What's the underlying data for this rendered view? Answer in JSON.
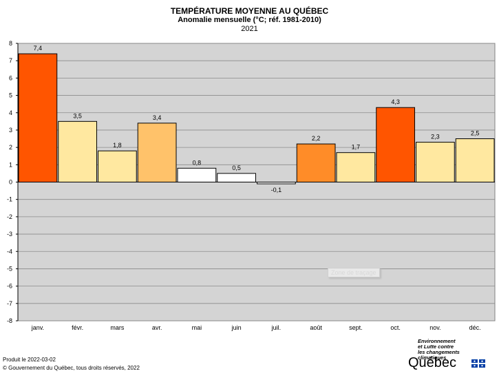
{
  "header": {
    "title": "TEMPÉRATURE MOYENNE AU QUÉBEC",
    "subtitle": "Anomalie mensuelle (°C; réf. 1981-2010)",
    "year": "2021"
  },
  "chart_data": {
    "type": "bar",
    "title": "TEMPÉRATURE MOYENNE AU QUÉBEC",
    "subtitle": "Anomalie mensuelle (°C; réf. 1981-2010)",
    "categories": [
      "janv.",
      "févr.",
      "mars",
      "avr.",
      "mai",
      "juin",
      "juil.",
      "août",
      "sept.",
      "oct.",
      "nov.",
      "déc."
    ],
    "values": [
      7.4,
      3.5,
      1.8,
      3.4,
      0.8,
      0.5,
      -0.1,
      2.2,
      1.7,
      4.3,
      2.3,
      2.5
    ],
    "value_labels": [
      "7,4",
      "3,5",
      "1,8",
      "3,4",
      "0,8",
      "0,5",
      "-0,1",
      "2,2",
      "1,7",
      "4,3",
      "2,3",
      "2,5"
    ],
    "colors": [
      "#ff5500",
      "#ffe8a0",
      "#ffe8a0",
      "#ffc26a",
      "#ffffff",
      "#ffffff",
      "#ffffff",
      "#ff8c28",
      "#ffe8a0",
      "#ff5500",
      "#ffe8a0",
      "#ffe8a0"
    ],
    "ylim": [
      -8,
      8
    ],
    "yticks": [
      8,
      7,
      6,
      5,
      4,
      3,
      2,
      1,
      0,
      -1,
      -2,
      -3,
      -4,
      -5,
      -6,
      -7,
      -8
    ],
    "xlabel": "",
    "ylabel": "",
    "grid": true,
    "plot_background": "#d4d4d4"
  },
  "plot_tooltip": "Zone de traçage",
  "footer": {
    "produced": "Produit le 2022-03-02",
    "copyright": "© Gouvernement du Québec, tous droits réservés, 2022"
  },
  "logo": {
    "line1": "Environnement",
    "line2": "et Lutte contre",
    "line3": "les changements",
    "line4": "climatiques",
    "wordmark": "Québec",
    "flag_color": "#003da5"
  }
}
